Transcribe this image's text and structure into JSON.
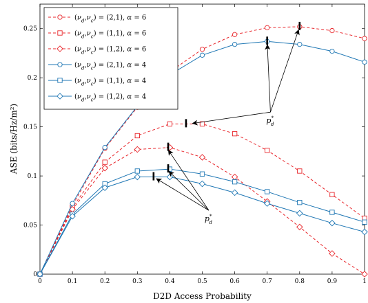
{
  "chart_data": {
    "type": "line",
    "xlabel": "D2D Access Probability",
    "ylabel": "ASE (bits/Hz/m²)",
    "xlim": [
      0,
      1
    ],
    "ylim": [
      0,
      0.275
    ],
    "xticks": [
      0,
      0.1,
      0.2,
      0.3,
      0.4,
      0.5,
      0.6,
      0.7,
      0.8,
      0.9,
      1
    ],
    "yticks": [
      0,
      0.05,
      0.1,
      0.15,
      0.2,
      0.25
    ],
    "grid": false,
    "legend_position": "top-left",
    "x": [
      0,
      0.1,
      0.2,
      0.3,
      0.4,
      0.5,
      0.6,
      0.7,
      0.8,
      0.9,
      1
    ],
    "series": [
      {
        "name": "(ν_d,ν_c)=(2,1), α=6",
        "label_html": "(<i>ν<tspan baseline-shift='sub' font-size='7'>d</tspan></i>,<i>ν<tspan baseline-shift='sub' font-size='7'>c</tspan></i>) = (2,1), <i>α</i> = 6",
        "color": "#e8252a",
        "dash": "4,3",
        "marker": "circle",
        "values": [
          0,
          0.07,
          0.128,
          0.17,
          0.206,
          0.229,
          0.244,
          0.251,
          0.252,
          0.248,
          0.24
        ]
      },
      {
        "name": "(ν_d,ν_c)=(1,1), α=6",
        "color": "#e8252a",
        "dash": "4,3",
        "marker": "square",
        "values": [
          0,
          0.068,
          0.114,
          0.141,
          0.153,
          0.153,
          0.143,
          0.126,
          0.105,
          0.081,
          0.057
        ]
      },
      {
        "name": "(ν_d,ν_c)=(1,2), α=6",
        "color": "#e8252a",
        "dash": "4,3",
        "marker": "diamond",
        "values": [
          0,
          0.066,
          0.108,
          0.127,
          0.129,
          0.119,
          0.099,
          0.074,
          0.048,
          0.021,
          0
        ]
      },
      {
        "name": "(ν_d,ν_c)=(2,1), α=4",
        "color": "#1f77b4",
        "dash": "",
        "marker": "circle",
        "values": [
          0,
          0.072,
          0.129,
          0.171,
          0.203,
          0.223,
          0.234,
          0.237,
          0.234,
          0.227,
          0.216
        ]
      },
      {
        "name": "(ν_d,ν_c)=(1,1), α=4",
        "color": "#1f77b4",
        "dash": "",
        "marker": "square",
        "values": [
          0,
          0.061,
          0.092,
          0.105,
          0.107,
          0.102,
          0.094,
          0.084,
          0.073,
          0.063,
          0.053
        ]
      },
      {
        "name": "(ν_d,ν_c)=(1,2), α=4",
        "color": "#1f77b4",
        "dash": "",
        "marker": "diamond",
        "values": [
          0,
          0.059,
          0.088,
          0.099,
          0.099,
          0.092,
          0.083,
          0.072,
          0.062,
          0.052,
          0.043
        ]
      }
    ],
    "optimum_markers": [
      {
        "x": 0.8,
        "y": 0.252
      },
      {
        "x": 0.7,
        "y": 0.237
      },
      {
        "x": 0.45,
        "y": 0.153
      },
      {
        "x": 0.395,
        "y": 0.129
      },
      {
        "x": 0.395,
        "y": 0.107
      },
      {
        "x": 0.35,
        "y": 0.099
      }
    ],
    "annotations": [
      {
        "text": "p",
        "sub": "d",
        "sup": "*",
        "at": [
          0.71,
          0.165
        ],
        "targets": [
          [
            0.8,
            0.252
          ],
          [
            0.7,
            0.237
          ],
          [
            0.46,
            0.153
          ]
        ]
      },
      {
        "text": "p",
        "sub": "d",
        "sup": "*",
        "at": [
          0.52,
          0.065
        ],
        "targets": [
          [
            0.39,
            0.129
          ],
          [
            0.39,
            0.107
          ],
          [
            0.35,
            0.099
          ]
        ]
      }
    ]
  }
}
